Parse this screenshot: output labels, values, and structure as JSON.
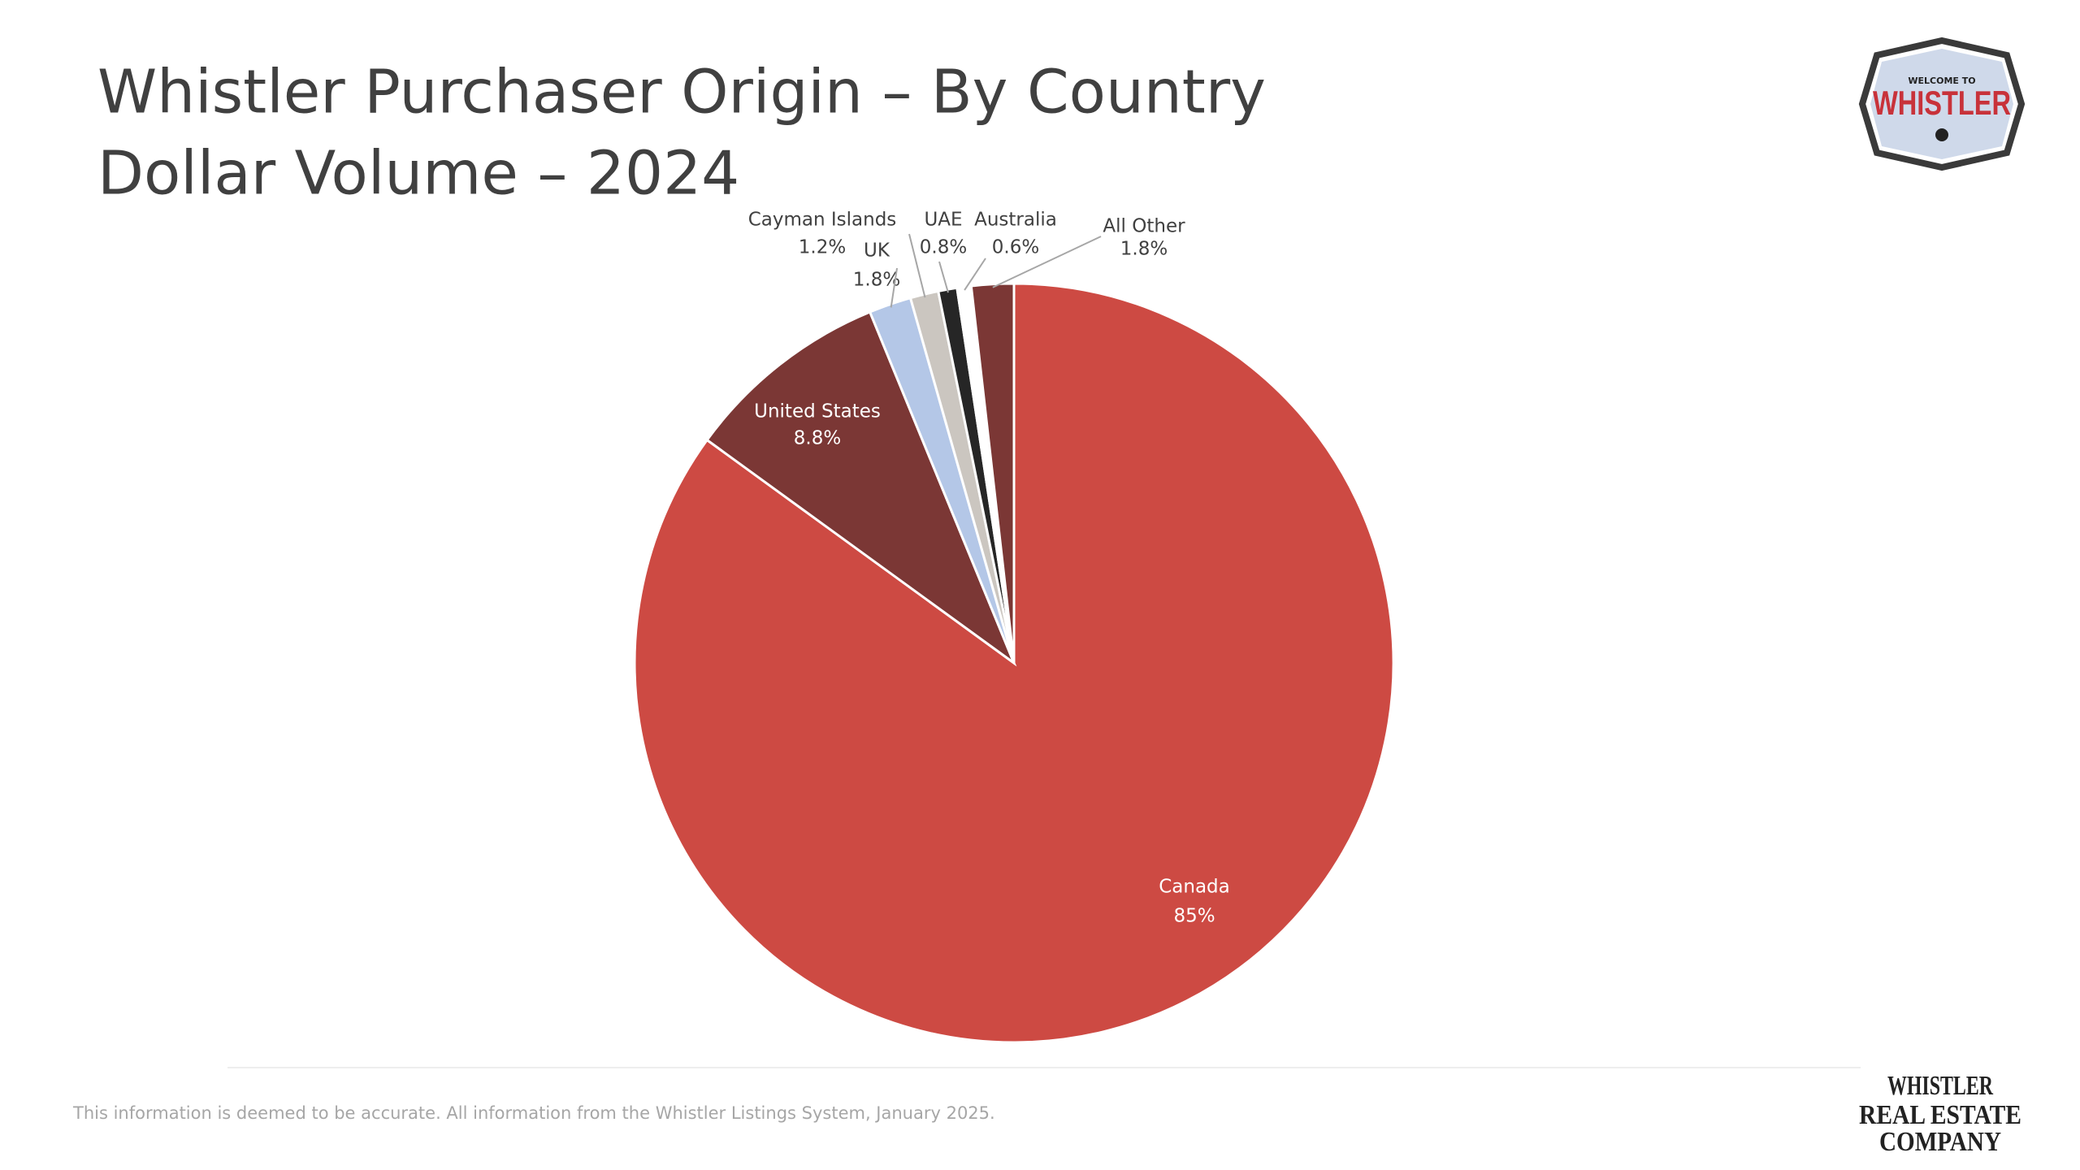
{
  "chart_data": {
    "type": "pie",
    "title": "Whistler Purchaser Origin – By Country",
    "subtitle": "Dollar Volume – 2024",
    "categories": [
      "Canada",
      "United States",
      "UK",
      "Cayman Islands",
      "UAE",
      "Australia",
      "All Other"
    ],
    "values": [
      85,
      8.8,
      1.8,
      1.2,
      0.8,
      0.6,
      1.8
    ],
    "value_labels": [
      "85%",
      "8.8%",
      "1.8%",
      "1.2%",
      "0.8%",
      "0.6%",
      "1.8%"
    ],
    "colors": [
      "#cd4a43",
      "#7b3735",
      "#b4c7e7",
      "#cbc6c0",
      "#262626",
      "#ffffff",
      "#7b3735"
    ]
  },
  "footnote": "This information is deemed to be accurate. All information from the Whistler Listings System, January 2025.",
  "badge": {
    "top": "WELCOME TO",
    "main": "WHISTLER"
  },
  "brand": {
    "line1": "WHISTLER",
    "line2": "REAL ESTATE",
    "line3": "COMPANY"
  }
}
